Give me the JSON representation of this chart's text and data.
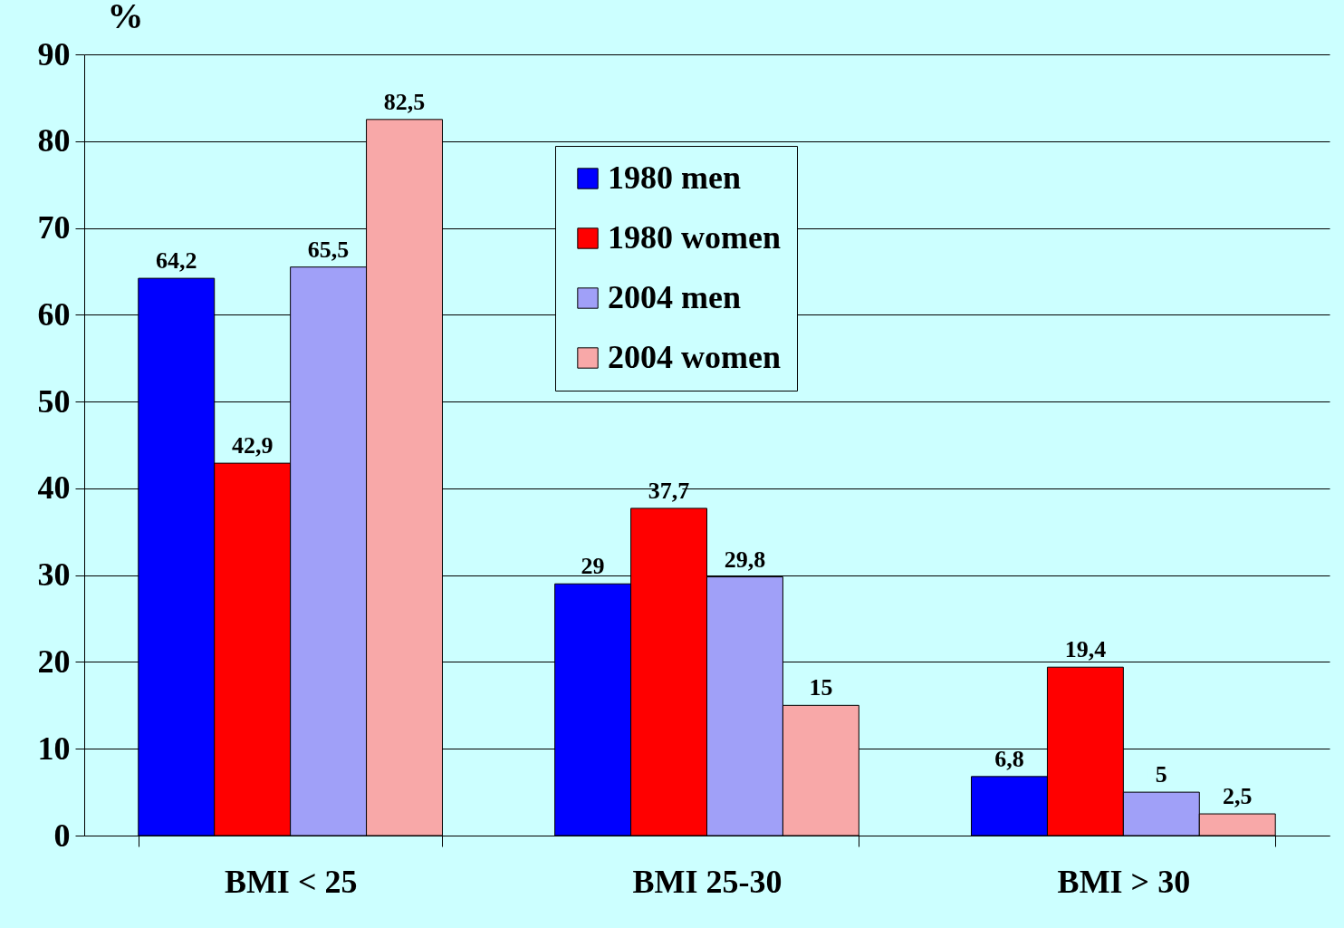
{
  "chart_data": {
    "type": "bar",
    "ylabel": "%",
    "categories": [
      "BMI < 25",
      "BMI 25-30",
      "BMI > 30"
    ],
    "series": [
      {
        "name": "1980 men",
        "color": "#0000ff",
        "values": [
          64.2,
          29,
          6.8
        ],
        "value_labels": [
          "64,2",
          "29",
          "6,8"
        ]
      },
      {
        "name": "1980 women",
        "color": "#ff0000",
        "values": [
          42.9,
          37.7,
          19.4
        ],
        "value_labels": [
          "42,9",
          "37,7",
          "19,4"
        ]
      },
      {
        "name": "2004 men",
        "color": "#a0a0f8",
        "values": [
          65.5,
          29.8,
          5
        ],
        "value_labels": [
          "65,5",
          "29,8",
          "5"
        ]
      },
      {
        "name": "2004 women",
        "color": "#f8a8a8",
        "values": [
          82.5,
          15,
          2.5
        ],
        "value_labels": [
          "82,5",
          "15",
          "2,5"
        ]
      }
    ],
    "ylim": [
      0,
      90
    ],
    "yticks": [
      0,
      10,
      20,
      30,
      40,
      50,
      60,
      70,
      80,
      90
    ],
    "grid": "y",
    "legend": "top"
  }
}
